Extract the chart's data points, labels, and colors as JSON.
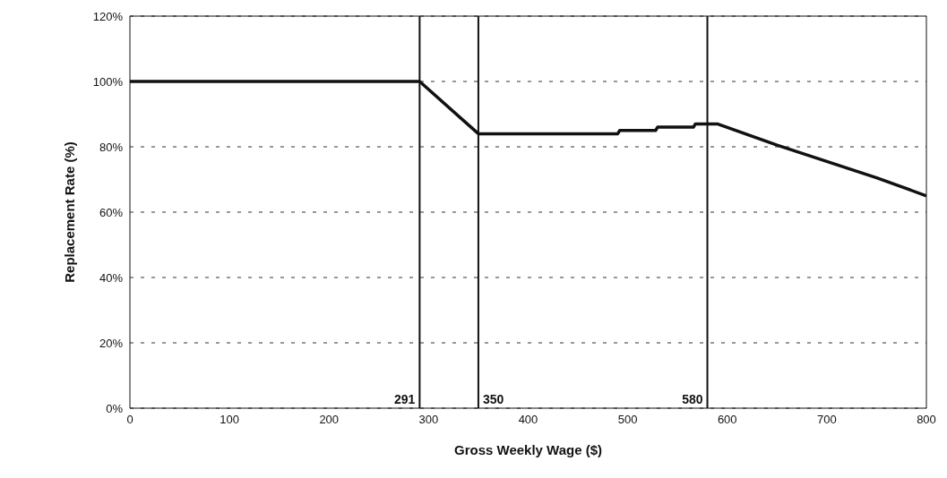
{
  "chart_data": {
    "type": "line",
    "xlabel": "Gross Weekly Wage ($)",
    "ylabel": "Replacement Rate (%)",
    "x": [
      0,
      291,
      350,
      490,
      492,
      528,
      530,
      566,
      568,
      590,
      650,
      700,
      750,
      800
    ],
    "series": [
      {
        "color": "#111111",
        "values": [
          100,
          100,
          84,
          84,
          85,
          85,
          86,
          86,
          87,
          87,
          80.5,
          75.5,
          70.5,
          65
        ]
      }
    ],
    "xlim": [
      0,
      800
    ],
    "xticks": [
      0,
      100,
      200,
      300,
      400,
      500,
      600,
      700,
      800
    ],
    "ylim": [
      0,
      120
    ],
    "yticks": [
      {
        "value": 0,
        "label": "0%"
      },
      {
        "value": 20,
        "label": "20%"
      },
      {
        "value": 40,
        "label": "40%"
      },
      {
        "value": 60,
        "label": "60%"
      },
      {
        "value": 80,
        "label": "80%"
      },
      {
        "value": 100,
        "label": "100%"
      },
      {
        "value": 120,
        "label": "120%"
      }
    ],
    "ref_lines": [
      {
        "axis": "x",
        "value": 291,
        "label": "291",
        "color": "#111111"
      },
      {
        "axis": "x",
        "value": 350,
        "label": "350",
        "color": "#111111"
      },
      {
        "axis": "x",
        "value": 580,
        "label": "580",
        "color": "#111111"
      }
    ],
    "grid": "y",
    "legend": false,
    "marker": "none",
    "line_style": "solid"
  }
}
